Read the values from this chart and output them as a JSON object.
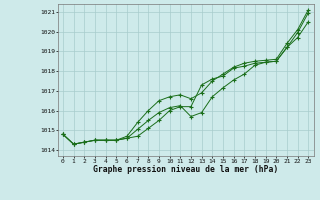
{
  "x": [
    0,
    1,
    2,
    3,
    4,
    5,
    6,
    7,
    8,
    9,
    10,
    11,
    12,
    13,
    14,
    15,
    16,
    17,
    18,
    19,
    20,
    21,
    22,
    23
  ],
  "line1": [
    1014.8,
    1014.3,
    1014.4,
    1014.5,
    1014.5,
    1014.5,
    1014.6,
    1014.7,
    1015.1,
    1015.5,
    1016.0,
    1016.2,
    1016.2,
    1017.3,
    1017.6,
    1017.75,
    1018.15,
    1018.25,
    1018.4,
    1018.45,
    1018.5,
    1019.2,
    1019.7,
    1020.5
  ],
  "line2": [
    1014.8,
    1014.3,
    1014.4,
    1014.5,
    1014.5,
    1014.5,
    1014.6,
    1015.05,
    1015.5,
    1015.9,
    1016.15,
    1016.25,
    1015.7,
    1015.9,
    1016.7,
    1017.15,
    1017.55,
    1017.85,
    1018.3,
    1018.45,
    1018.5,
    1019.2,
    1019.95,
    1020.95
  ],
  "line3": [
    1014.8,
    1014.3,
    1014.4,
    1014.5,
    1014.5,
    1014.5,
    1014.7,
    1015.4,
    1016.0,
    1016.5,
    1016.7,
    1016.8,
    1016.6,
    1016.9,
    1017.5,
    1017.85,
    1018.2,
    1018.4,
    1018.5,
    1018.55,
    1018.6,
    1019.4,
    1020.1,
    1021.1
  ],
  "line_color": "#1a6e1a",
  "background_color": "#ceeaea",
  "grid_color": "#a8cccc",
  "ylabel_ticks": [
    1014,
    1015,
    1016,
    1017,
    1018,
    1019,
    1020,
    1021
  ],
  "xlabel": "Graphe pression niveau de la mer (hPa)",
  "ylim": [
    1013.7,
    1021.4
  ],
  "xlim": [
    -0.5,
    23.5
  ]
}
